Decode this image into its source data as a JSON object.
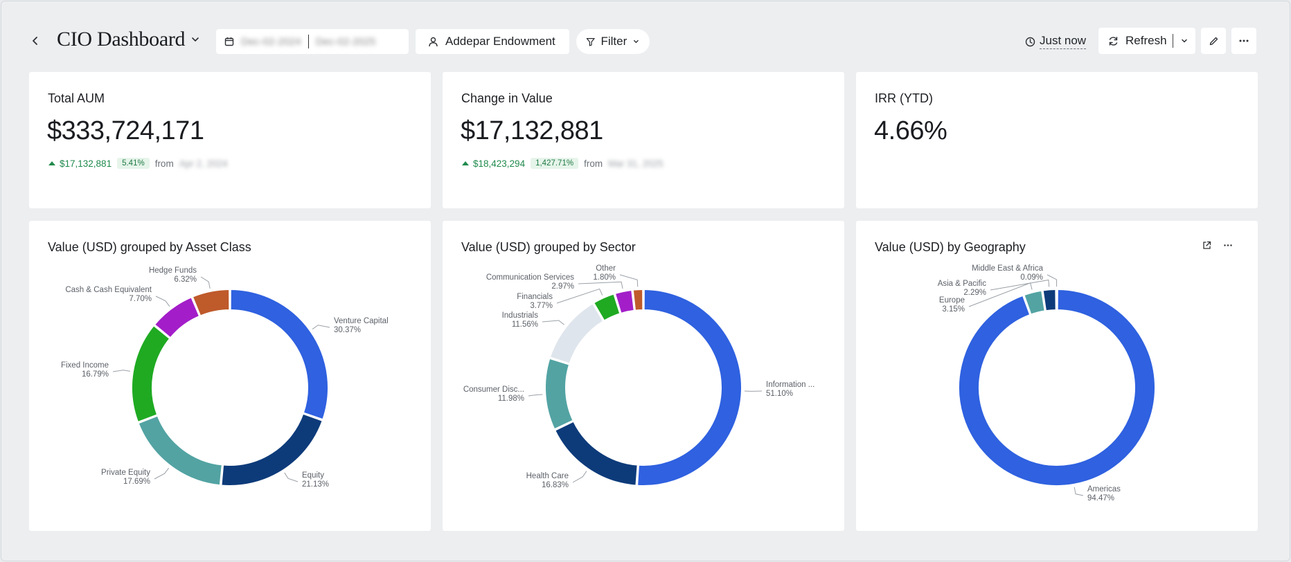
{
  "header": {
    "title": "CIO Dashboard",
    "date_from": "Dec-02-2024",
    "date_to": "Dec-02-2025",
    "entity": "Addepar Endowment",
    "filter_label": "Filter",
    "last_updated": "Just now",
    "refresh_label": "Refresh"
  },
  "kpis": [
    {
      "title": "Total AUM",
      "value": "$333,724,171",
      "change": "$17,132,881",
      "change_pct": "5.41%",
      "from_label": "from",
      "from_date": "Apr 2, 2024"
    },
    {
      "title": "Change in Value",
      "value": "$17,132,881",
      "change": "$18,423,294",
      "change_pct": "1,427.71%",
      "from_label": "from",
      "from_date": "Mar 31, 2025"
    },
    {
      "title": "IRR (YTD)",
      "value": "4.66%"
    }
  ],
  "colors": {
    "blue": "#2f61e0",
    "navy": "#0d3b7a",
    "teal": "#53a3a3",
    "green": "#1faa22",
    "purple": "#a31ec9",
    "orange": "#bf5a2b",
    "light": "#dfe5ec",
    "positive": "#1f8a4c"
  },
  "chart_data": [
    {
      "type": "pie",
      "title": "Value (USD) grouped by Asset Class",
      "donut": true,
      "categories": [
        "Venture Capital",
        "Equity",
        "Private Equity",
        "Fixed Income",
        "Cash & Cash Equivalent",
        "Hedge Funds"
      ],
      "values": [
        30.37,
        21.13,
        17.69,
        16.79,
        7.7,
        6.32
      ],
      "labels": [
        "30.37%",
        "21.13%",
        "17.69%",
        "16.79%",
        "7.70%",
        "6.32%"
      ],
      "colors": [
        "#2f61e0",
        "#0d3b7a",
        "#53a3a3",
        "#1faa22",
        "#a31ec9",
        "#bf5a2b"
      ]
    },
    {
      "type": "pie",
      "title": "Value (USD) grouped by Sector",
      "donut": true,
      "categories": [
        "Information ...",
        "Health Care",
        "Consumer Disc...",
        "Industrials",
        "Financials",
        "Communication Services",
        "Other"
      ],
      "values": [
        51.1,
        16.83,
        11.98,
        11.56,
        3.77,
        2.97,
        1.8
      ],
      "labels": [
        "51.10%",
        "16.83%",
        "11.98%",
        "11.56%",
        "3.77%",
        "2.97%",
        "1.80%"
      ],
      "colors": [
        "#2f61e0",
        "#0d3b7a",
        "#53a3a3",
        "#dfe5ec",
        "#1faa22",
        "#a31ec9",
        "#bf5a2b"
      ]
    },
    {
      "type": "pie",
      "title": "Value (USD) by Geography",
      "donut": true,
      "categories": [
        "Americas",
        "Europe",
        "Asia & Pacific",
        "Middle East & Africa"
      ],
      "values": [
        94.47,
        3.15,
        2.29,
        0.09
      ],
      "labels": [
        "94.47%",
        "3.15%",
        "2.29%",
        "0.09%"
      ],
      "colors": [
        "#2f61e0",
        "#53a3a3",
        "#0d3b7a",
        "#1faa22"
      ]
    }
  ]
}
